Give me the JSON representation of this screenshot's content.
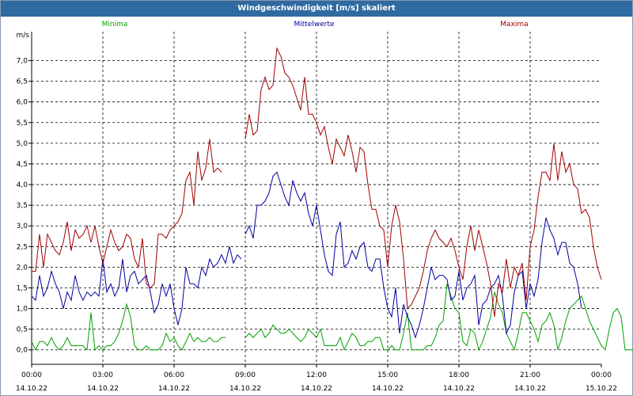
{
  "window": {
    "title": "Windgeschwindigkeit [m/s] skaliert"
  },
  "chart_data": {
    "type": "line",
    "title": "Windgeschwindigkeit [m/s] skaliert",
    "ylabel": "m/s",
    "xlabel": "",
    "ylim": [
      -0.35,
      7.7
    ],
    "grid": true,
    "legend_placement": "top",
    "y_ticks": [
      "0,0",
      "0,5",
      "1,0",
      "1,5",
      "2,0",
      "2,5",
      "3,0",
      "3,5",
      "4,0",
      "4,5",
      "5,0",
      "5,5",
      "6,0",
      "6,5",
      "7,0"
    ],
    "x_ticks": [
      {
        "time": "00:00",
        "date": "14.10.22"
      },
      {
        "time": "03:00",
        "date": "14.10.22"
      },
      {
        "time": "06:00",
        "date": "14.10.22"
      },
      {
        "time": "09:00",
        "date": "14.10.22"
      },
      {
        "time": "12:00",
        "date": "14.10.22"
      },
      {
        "time": "15:00",
        "date": "14.10.22"
      },
      {
        "time": "18:00",
        "date": "14.10.22"
      },
      {
        "time": "21:00",
        "date": "14.10.22"
      },
      {
        "time": "00:00",
        "date": "15.10.22"
      }
    ],
    "series": [
      {
        "name": "Minima",
        "color": "#00a000",
        "segments": [
          {
            "x_start_h": 0.0,
            "step_min": 10,
            "values": [
              0.2,
              0.0,
              0.2,
              0.2,
              0.1,
              0.3,
              0.1,
              0.0,
              0.1,
              0.3,
              0.1,
              0.1,
              0.1,
              0.1,
              0.0,
              0.9,
              0.0,
              0.1,
              0.0,
              0.1,
              0.1,
              0.2,
              0.4,
              0.7,
              1.1,
              0.8,
              0.1,
              0.0,
              0.0,
              0.1,
              0.0,
              0.0,
              0.0,
              0.1,
              0.4,
              0.2,
              0.3,
              0.1,
              0.0,
              0.2,
              0.4,
              0.2,
              0.3,
              0.2,
              0.2,
              0.3,
              0.2,
              0.2,
              0.3,
              0.3
            ]
          },
          {
            "x_start_h": 9.0,
            "step_min": 10,
            "values": [
              0.3,
              0.4,
              0.3,
              0.4,
              0.5,
              0.3,
              0.4,
              0.6,
              0.5,
              0.4,
              0.4,
              0.5,
              0.4,
              0.3,
              0.2,
              0.3,
              0.5,
              0.4,
              0.3,
              0.5,
              0.1,
              0.1,
              0.1,
              0.1,
              0.3,
              0.0,
              0.2,
              0.4,
              0.3,
              0.1,
              0.1,
              0.2,
              0.2,
              0.3,
              0.3,
              0.0,
              0.0,
              0.1,
              0.0,
              0.0,
              0.4,
              0.9,
              0.0,
              0.0,
              0.0,
              0.0,
              0.1,
              0.1,
              0.3,
              0.6,
              0.7,
              1.6,
              1.3,
              1.0,
              0.9,
              0.2,
              0.1,
              0.5,
              0.4,
              0.0,
              0.2,
              0.5,
              0.8,
              1.4,
              1.1,
              0.9,
              0.4,
              0.2,
              0.0,
              0.4,
              0.9,
              0.9,
              0.7,
              0.5,
              0.2,
              0.6,
              0.7,
              0.9,
              0.6,
              0.0,
              0.3,
              0.7,
              1.0,
              1.1,
              1.2,
              1.3,
              1.0,
              0.7,
              0.5,
              0.3,
              0.1,
              0.0,
              0.5,
              0.9,
              1.0,
              0.8,
              0.0,
              0.0,
              0.0
            ]
          }
        ]
      },
      {
        "name": "Mittelwerte",
        "color": "#0000a0",
        "segments": [
          {
            "x_start_h": 0.0,
            "step_min": 10,
            "values": [
              1.3,
              1.2,
              1.8,
              1.3,
              1.5,
              1.9,
              1.6,
              1.4,
              1.0,
              1.4,
              1.2,
              1.8,
              1.4,
              1.2,
              1.4,
              1.3,
              1.4,
              1.3,
              2.2,
              1.4,
              1.6,
              1.3,
              1.5,
              2.2,
              1.4,
              1.8,
              1.9,
              1.6,
              1.7,
              1.8,
              1.4,
              0.9,
              1.1,
              1.6,
              1.3,
              1.6,
              1.0,
              0.6,
              1.0,
              2.0,
              1.6,
              1.6,
              1.5,
              2.0,
              1.8,
              2.2,
              2.0,
              2.1,
              2.3,
              2.1,
              2.5,
              2.1,
              2.3,
              2.2
            ]
          },
          {
            "x_start_h": 9.0,
            "step_min": 10,
            "values": [
              2.8,
              3.0,
              2.7,
              3.5,
              3.5,
              3.6,
              3.8,
              4.2,
              4.3,
              4.0,
              3.7,
              3.5,
              4.1,
              3.8,
              3.6,
              3.8,
              3.3,
              3.0,
              3.5,
              2.9,
              2.3,
              1.9,
              1.8,
              2.8,
              3.1,
              2.0,
              2.1,
              2.4,
              2.2,
              2.5,
              2.6,
              2.0,
              1.9,
              2.2,
              2.2,
              1.5,
              1.0,
              0.8,
              1.5,
              0.4,
              1.1,
              0.8,
              0.6,
              0.3,
              0.6,
              1.0,
              1.5,
              2.0,
              1.7,
              1.8,
              1.8,
              1.7,
              1.2,
              1.3,
              1.9,
              1.2,
              1.5,
              1.6,
              1.8,
              0.6,
              1.1,
              1.2,
              1.5,
              1.6,
              1.8,
              1.3,
              0.4,
              0.6,
              1.4,
              1.8,
              1.9,
              1.0,
              1.6,
              1.3,
              1.7,
              2.6,
              3.2,
              2.9,
              2.7,
              2.3,
              2.6,
              2.6,
              2.1,
              2.0,
              1.6,
              1.0
            ]
          }
        ]
      },
      {
        "name": "Maxima",
        "color": "#a00000",
        "segments": [
          {
            "x_start_h": 0.0,
            "step_min": 10,
            "values": [
              1.9,
              1.9,
              2.8,
              2.0,
              2.8,
              2.6,
              2.4,
              2.3,
              2.6,
              3.1,
              2.4,
              2.9,
              2.7,
              2.8,
              3.0,
              2.6,
              3.0,
              2.5,
              2.1,
              2.5,
              2.9,
              2.6,
              2.4,
              2.5,
              2.8,
              2.7,
              2.2,
              2.0,
              2.7,
              1.6,
              1.5,
              1.6,
              2.8,
              2.8,
              2.7,
              2.9,
              3.0,
              3.1,
              3.3,
              4.1,
              4.3,
              3.5,
              4.8,
              4.1,
              4.4,
              5.1,
              4.3,
              4.4,
              4.3
            ]
          },
          {
            "x_start_h": 9.0,
            "step_min": 10,
            "values": [
              5.1,
              5.7,
              5.2,
              5.3,
              6.3,
              6.6,
              6.3,
              6.4,
              7.3,
              7.1,
              6.7,
              6.6,
              6.4,
              6.1,
              5.8,
              6.6,
              5.7,
              5.7,
              5.5,
              5.2,
              5.4,
              4.9,
              4.5,
              5.1,
              4.9,
              4.7,
              5.2,
              4.8,
              4.3,
              4.9,
              4.8,
              4.0,
              3.4,
              3.4,
              3.0,
              2.9,
              2.0,
              3.0,
              3.5,
              3.1,
              2.2,
              1.0,
              1.1,
              1.3,
              1.5,
              1.9,
              2.4,
              2.7,
              2.9,
              2.7,
              2.6,
              2.5,
              2.7,
              2.4,
              2.0,
              1.7,
              2.5,
              3.0,
              2.4,
              2.9,
              2.5,
              2.1,
              1.6,
              0.8,
              1.6,
              1.4,
              2.2,
              1.5,
              2.0,
              1.8,
              2.1,
              1.2,
              2.5,
              2.9,
              3.7,
              4.3,
              4.3,
              4.1,
              5.0,
              4.1,
              4.8,
              4.3,
              4.5,
              4.0,
              3.9,
              3.3,
              3.4,
              3.2,
              2.5,
              2.0,
              1.7
            ]
          }
        ]
      }
    ]
  }
}
